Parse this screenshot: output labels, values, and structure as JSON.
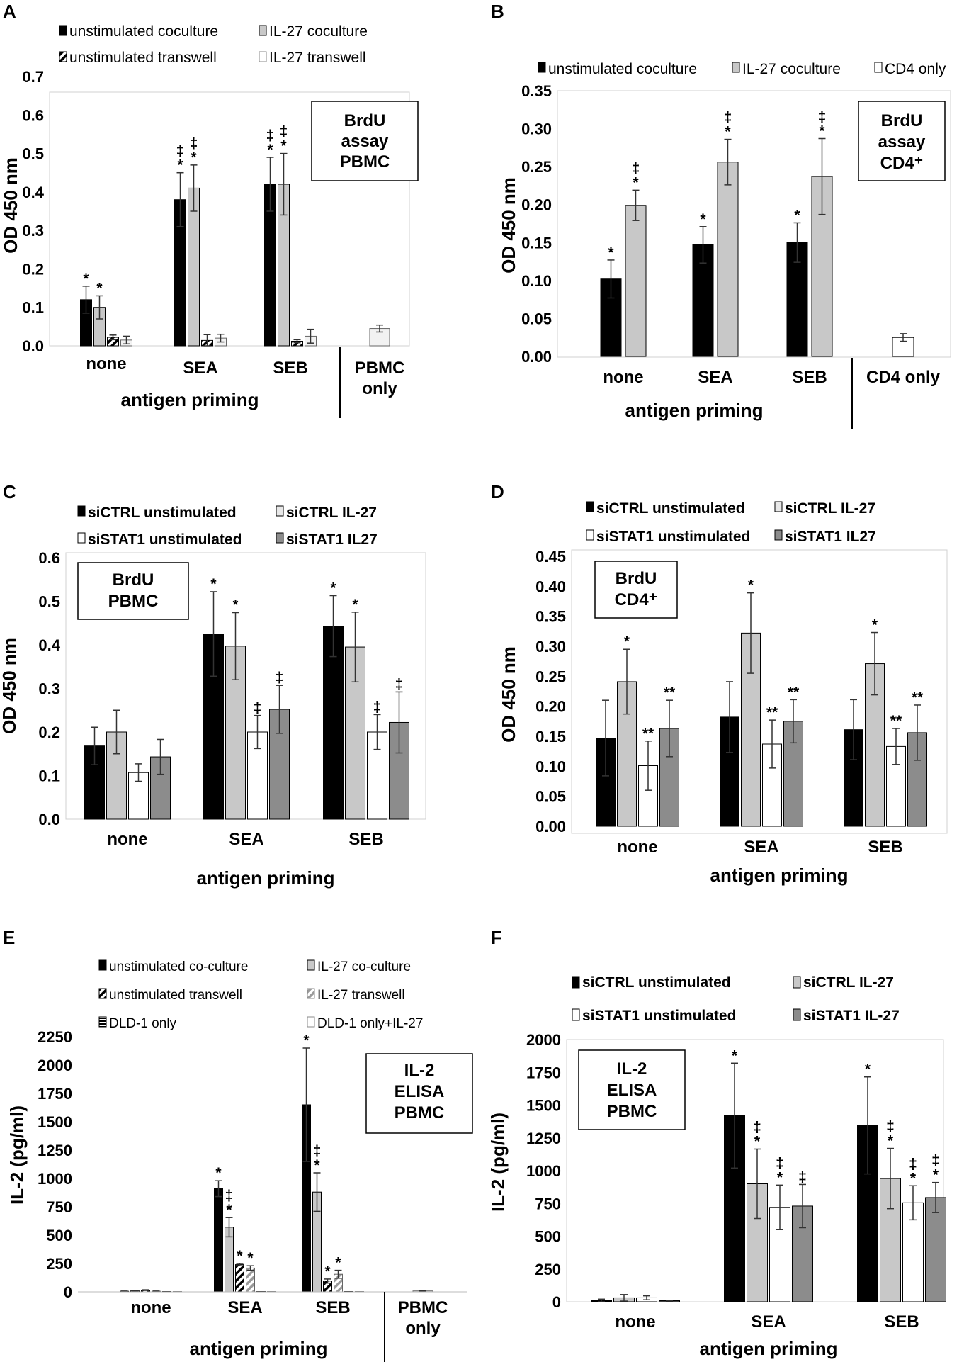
{
  "colors": {
    "black": "#000000",
    "light_gray": "#c8c8c8",
    "mid_gray": "#8c8c8c",
    "white": "#ffffff",
    "frame": "#d0d0d0"
  },
  "chart_data": [
    {
      "panel": "A",
      "type": "bar",
      "title": "",
      "xlabel": "antigen priming",
      "ylabel": "OD 450 nm",
      "ylim": [
        0,
        0.7
      ],
      "yticks": [
        "0.0",
        "0.1",
        "0.2",
        "0.3",
        "0.4",
        "0.5",
        "0.6",
        "0.7"
      ],
      "box_label": [
        "BrdU",
        "assay",
        "PBMC"
      ],
      "categories": [
        "none",
        "SEA",
        "SEB"
      ],
      "extra_category": [
        "PBMC",
        "only"
      ],
      "legend": [
        {
          "label": "unstimulated coculture",
          "style": "black"
        },
        {
          "label": "IL-27 coculture",
          "style": "light_gray"
        },
        {
          "label": "unstimulated transwell",
          "style": "hatch_bw"
        },
        {
          "label": "IL-27 transwell",
          "style": "white_gray"
        }
      ],
      "series": [
        {
          "name": "unstimulated coculture",
          "style": "black",
          "values": [
            0.12,
            0.38,
            0.42
          ],
          "errors": [
            0.035,
            0.07,
            0.07
          ],
          "annotations": [
            "*",
            "‡\n*",
            "‡\n*"
          ]
        },
        {
          "name": "IL-27 coculture",
          "style": "light_gray",
          "values": [
            0.1,
            0.41,
            0.42
          ],
          "errors": [
            0.03,
            0.06,
            0.08
          ],
          "annotations": [
            "*",
            "‡\n*",
            "‡\n*"
          ]
        },
        {
          "name": "unstimulated transwell",
          "style": "hatch_bw",
          "values": [
            0.022,
            0.014,
            0.012
          ],
          "errors": [
            0.006,
            0.015,
            0.004
          ],
          "annotations": [
            "",
            "",
            ""
          ]
        },
        {
          "name": "IL-27 transwell",
          "style": "white_gray",
          "values": [
            0.015,
            0.02,
            0.025
          ],
          "errors": [
            0.01,
            0.01,
            0.018
          ],
          "annotations": [
            "",
            "",
            ""
          ]
        }
      ],
      "extra_bar": {
        "style": "white_gray",
        "value": 0.045,
        "error": 0.009
      }
    },
    {
      "panel": "B",
      "type": "bar",
      "title": "",
      "xlabel": "antigen priming",
      "ylabel": "OD 450 nm",
      "ylim": [
        0,
        0.35
      ],
      "yticks": [
        "0.00",
        "0.05",
        "0.10",
        "0.15",
        "0.20",
        "0.25",
        "0.30",
        "0.35"
      ],
      "box_label": [
        "BrdU",
        "assay",
        "CD4⁺"
      ],
      "categories": [
        "none",
        "SEA",
        "SEB"
      ],
      "extra_category": [
        "CD4 only"
      ],
      "legend": [
        {
          "label": "unstimulated coculture",
          "style": "black"
        },
        {
          "label": "IL-27 coculture",
          "style": "light_gray"
        },
        {
          "label": "CD4 only",
          "style": "white"
        }
      ],
      "series": [
        {
          "name": "unstimulated coculture",
          "style": "black",
          "values": [
            0.102,
            0.147,
            0.15
          ],
          "errors": [
            0.025,
            0.024,
            0.026
          ],
          "annotations": [
            "*",
            "*",
            "*"
          ]
        },
        {
          "name": "IL-27 coculture",
          "style": "light_gray",
          "values": [
            0.199,
            0.256,
            0.237
          ],
          "errors": [
            0.02,
            0.03,
            0.05
          ],
          "annotations": [
            "‡\n*",
            "‡\n*",
            "‡\n*"
          ]
        }
      ],
      "extra_bar": {
        "style": "white",
        "value": 0.025,
        "error": 0.005
      }
    },
    {
      "panel": "C",
      "type": "bar",
      "title": "",
      "xlabel": "antigen priming",
      "ylabel": "OD 450 nm",
      "ylim": [
        0,
        0.6
      ],
      "yticks": [
        "0.0",
        "0.1",
        "0.2",
        "0.3",
        "0.4",
        "0.5",
        "0.6"
      ],
      "box_label": [
        "BrdU",
        "PBMC"
      ],
      "categories": [
        "none",
        "SEA",
        "SEB"
      ],
      "legend": [
        {
          "label": "siCTRL unstimulated",
          "style": "black"
        },
        {
          "label": "siCTRL IL-27",
          "style": "light_gray"
        },
        {
          "label": "siSTAT1 unstimulated",
          "style": "white"
        },
        {
          "label": "siSTAT1 IL27",
          "style": "mid_gray"
        }
      ],
      "series": [
        {
          "name": "siCTRL unstimulated",
          "style": "black",
          "values": [
            0.168,
            0.425,
            0.443
          ],
          "errors": [
            0.043,
            0.097,
            0.07
          ],
          "annotations": [
            "",
            "*",
            "*"
          ]
        },
        {
          "name": "siCTRL IL-27",
          "style": "light_gray",
          "values": [
            0.2,
            0.397,
            0.395
          ],
          "errors": [
            0.05,
            0.077,
            0.08
          ],
          "annotations": [
            "",
            "*",
            "*"
          ]
        },
        {
          "name": "siSTAT1 unstimulated",
          "style": "white",
          "values": [
            0.107,
            0.2,
            0.2
          ],
          "errors": [
            0.02,
            0.038,
            0.04
          ],
          "annotations": [
            "",
            "‡",
            "‡"
          ]
        },
        {
          "name": "siSTAT1 IL27",
          "style": "mid_gray",
          "values": [
            0.143,
            0.252,
            0.222
          ],
          "errors": [
            0.04,
            0.055,
            0.07
          ],
          "annotations": [
            "",
            "‡",
            "‡"
          ]
        }
      ]
    },
    {
      "panel": "D",
      "type": "bar",
      "title": "",
      "xlabel": "antigen priming",
      "ylabel": "OD 450 nm",
      "ylim": [
        0,
        0.45
      ],
      "yticks": [
        "0.00",
        "0.05",
        "0.10",
        "0.15",
        "0.20",
        "0.25",
        "0.30",
        "0.35",
        "0.40",
        "0.45"
      ],
      "box_label": [
        "BrdU",
        "CD4⁺"
      ],
      "categories": [
        "none",
        "SEA",
        "SEB"
      ],
      "legend": [
        {
          "label": "siCTRL unstimulated",
          "style": "black"
        },
        {
          "label": "siCTRL IL-27",
          "style": "light_gray"
        },
        {
          "label": "siSTAT1 unstimulated",
          "style": "white"
        },
        {
          "label": "siSTAT1 IL27",
          "style": "mid_gray"
        }
      ],
      "series": [
        {
          "name": "siCTRL unstimulated",
          "style": "black",
          "values": [
            0.147,
            0.182,
            0.161
          ],
          "errors": [
            0.063,
            0.059,
            0.05
          ],
          "annotations": [
            "",
            "",
            ""
          ]
        },
        {
          "name": "siCTRL IL-27",
          "style": "light_gray",
          "values": [
            0.241,
            0.322,
            0.271
          ],
          "errors": [
            0.054,
            0.067,
            0.052
          ],
          "annotations": [
            "*",
            "*",
            "*"
          ]
        },
        {
          "name": "siSTAT1 unstimulated",
          "style": "white",
          "values": [
            0.101,
            0.137,
            0.133
          ],
          "errors": [
            0.041,
            0.04,
            0.03
          ],
          "annotations": [
            "**",
            "**",
            "**"
          ]
        },
        {
          "name": "siSTAT1 IL27",
          "style": "mid_gray",
          "values": [
            0.163,
            0.175,
            0.156
          ],
          "errors": [
            0.047,
            0.036,
            0.046
          ],
          "annotations": [
            "**",
            "**",
            "**"
          ]
        }
      ]
    },
    {
      "panel": "E",
      "type": "bar",
      "title": "",
      "xlabel": "antigen priming",
      "ylabel": "IL-2 (pg/ml)",
      "ylim": [
        0,
        2250
      ],
      "yticks": [
        "0",
        "250",
        "500",
        "750",
        "1000",
        "1250",
        "1500",
        "1750",
        "2000",
        "2250"
      ],
      "box_label": [
        "IL-2",
        "ELISA",
        "PBMC"
      ],
      "categories": [
        "none",
        "SEA",
        "SEB"
      ],
      "extra_category": [
        "PBMC",
        "only"
      ],
      "legend": [
        {
          "label": "unstimulated co-culture",
          "style": "black"
        },
        {
          "label": "IL-27 co-culture",
          "style": "light_gray"
        },
        {
          "label": "unstimulated transwell",
          "style": "hatch_bw"
        },
        {
          "label": "IL-27 transwell",
          "style": "hatch_gray"
        },
        {
          "label": "DLD-1 only",
          "style": "hstripe"
        },
        {
          "label": "DLD-1 only+IL-27",
          "style": "white_gray"
        }
      ],
      "series": [
        {
          "name": "unstimulated co-culture",
          "style": "black",
          "values": [
            5,
            910,
            1650
          ],
          "errors": [
            2,
            70,
            500
          ],
          "annotations": [
            "",
            "*",
            "*"
          ]
        },
        {
          "name": "IL-27 co-culture",
          "style": "light_gray",
          "values": [
            8,
            570,
            880
          ],
          "errors": [
            2,
            85,
            170
          ],
          "annotations": [
            "",
            "‡\n*",
            "‡\n*"
          ]
        },
        {
          "name": "unstimulated transwell",
          "style": "hatch_bw",
          "values": [
            15,
            240,
            95
          ],
          "errors": [
            3,
            10,
            18
          ],
          "annotations": [
            "",
            "*",
            "*"
          ]
        },
        {
          "name": "IL-27 transwell",
          "style": "hatch_gray",
          "values": [
            5,
            210,
            155
          ],
          "errors": [
            2,
            20,
            35
          ],
          "annotations": [
            "",
            "*",
            "*"
          ]
        },
        {
          "name": "DLD-1 only",
          "style": "hstripe",
          "values": [
            3,
            3,
            3
          ],
          "errors": [
            0,
            0,
            0
          ],
          "annotations": [
            "",
            "",
            ""
          ]
        },
        {
          "name": "DLD-1 only+IL-27",
          "style": "white_gray",
          "values": [
            3,
            3,
            3
          ],
          "errors": [
            0,
            0,
            0
          ],
          "annotations": [
            "",
            "",
            ""
          ]
        }
      ],
      "extra_bar": {
        "style": "white_gray",
        "value": 8,
        "error": 2
      }
    },
    {
      "panel": "F",
      "type": "bar",
      "title": "",
      "xlabel": "antigen priming",
      "ylabel": "IL-2 (pg/ml)",
      "ylim": [
        0,
        2000
      ],
      "yticks": [
        "0",
        "250",
        "500",
        "750",
        "1000",
        "1250",
        "1500",
        "1750",
        "2000"
      ],
      "box_label": [
        "IL-2",
        "ELISA",
        "PBMC"
      ],
      "categories": [
        "none",
        "SEA",
        "SEB"
      ],
      "legend": [
        {
          "label": "siCTRL unstimulated",
          "style": "black"
        },
        {
          "label": "siCTRL IL-27",
          "style": "light_gray"
        },
        {
          "label": "siSTAT1 unstimulated",
          "style": "white"
        },
        {
          "label": "siSTAT1 IL-27",
          "style": "mid_gray"
        }
      ],
      "series": [
        {
          "name": "siCTRL unstimulated",
          "style": "black",
          "values": [
            10,
            1420,
            1345
          ],
          "errors": [
            10,
            400,
            370
          ],
          "annotations": [
            "",
            "*",
            "*"
          ]
        },
        {
          "name": "siCTRL IL-27",
          "style": "light_gray",
          "values": [
            30,
            900,
            940
          ],
          "errors": [
            25,
            265,
            230
          ],
          "annotations": [
            "",
            "‡\n*",
            "‡\n*"
          ]
        },
        {
          "name": "siSTAT1 unstimulated",
          "style": "white",
          "values": [
            30,
            720,
            755
          ],
          "errors": [
            15,
            170,
            130
          ],
          "annotations": [
            "",
            "‡\n*",
            "‡\n*"
          ]
        },
        {
          "name": "siSTAT1 IL-27",
          "style": "mid_gray",
          "values": [
            8,
            730,
            795
          ],
          "errors": [
            3,
            165,
            115
          ],
          "annotations": [
            "",
            "‡",
            "‡\n*"
          ]
        }
      ]
    }
  ]
}
